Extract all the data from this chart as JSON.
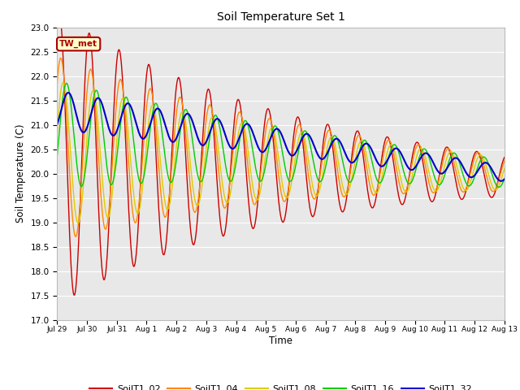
{
  "title": "Soil Temperature Set 1",
  "xlabel": "Time",
  "ylabel": "Soil Temperature (C)",
  "ylim": [
    17.0,
    23.0
  ],
  "yticks": [
    17.0,
    17.5,
    18.0,
    18.5,
    19.0,
    19.5,
    20.0,
    20.5,
    21.0,
    21.5,
    22.0,
    22.5,
    23.0
  ],
  "xtick_labels": [
    "Jul 29",
    "Jul 30",
    "Jul 31",
    "Aug 1",
    "Aug 2",
    "Aug 3",
    "Aug 4",
    "Aug 5",
    "Aug 6",
    "Aug 7",
    "Aug 8",
    "Aug 9",
    "Aug 10",
    "Aug 11",
    "Aug 12",
    "Aug 13"
  ],
  "colors": {
    "SoilT1_02": "#cc0000",
    "SoilT1_04": "#ff8800",
    "SoilT1_08": "#ddcc00",
    "SoilT1_16": "#00cc00",
    "SoilT1_32": "#0000cc"
  },
  "background_color": "#e8e8e8",
  "annotation_text": "TW_met",
  "annotation_bg": "#ffffcc",
  "annotation_border": "#aa0000",
  "figsize": [
    6.4,
    4.8
  ],
  "dpi": 100
}
